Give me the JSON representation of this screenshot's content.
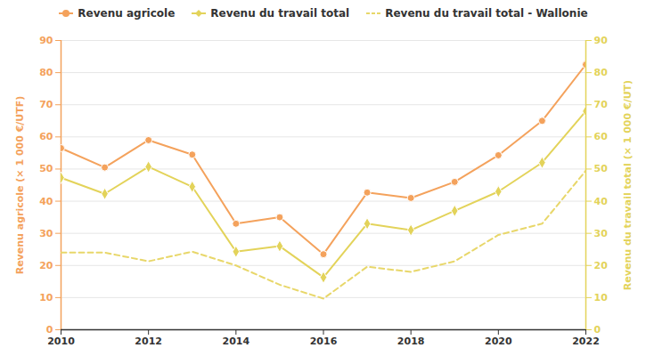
{
  "chart_data": {
    "type": "line",
    "xlabel": null,
    "ylabel": "Revenu agricole (× 1 000 €/UTF)",
    "y2label": "Revenu du travail total (× 1 000 €/UT)",
    "x": [
      2010,
      2011,
      2012,
      2013,
      2014,
      2015,
      2016,
      2017,
      2018,
      2019,
      2020,
      2021,
      2022
    ],
    "xlim": [
      2010,
      2022
    ],
    "xticks": [
      2010,
      2012,
      2014,
      2016,
      2018,
      2020,
      2022
    ],
    "ylim": [
      0,
      90
    ],
    "yticks": [
      0,
      10,
      20,
      30,
      40,
      50,
      60,
      70,
      80,
      90
    ],
    "y2lim": [
      0,
      90
    ],
    "y2ticks": [
      0,
      10,
      20,
      30,
      40,
      50,
      60,
      70,
      80,
      90
    ],
    "grid": true,
    "legend": "top",
    "series": [
      {
        "name": "Revenu agricole",
        "color": "#f4a25c",
        "marker": "circle",
        "line_style": "solid",
        "axis": "y",
        "values": [
          56.5,
          50.5,
          59,
          54.5,
          33,
          35,
          23.5,
          42.7,
          41,
          46,
          54.3,
          65,
          82.5
        ]
      },
      {
        "name": "Revenu du travail total",
        "color": "#e3d35a",
        "marker": "diamond",
        "line_style": "solid",
        "axis": "y2",
        "values": [
          47.3,
          42.3,
          50.7,
          44.5,
          24.3,
          26,
          16.3,
          33,
          31,
          37,
          43,
          52,
          68
        ]
      },
      {
        "name": "Revenu du travail total - Wallonie",
        "color": "#e8d76a",
        "marker": "none",
        "line_style": "dashed",
        "axis": "y2",
        "values": [
          24,
          24,
          21.3,
          24.3,
          20,
          14,
          9.7,
          19.6,
          18,
          21.3,
          29.5,
          33,
          49.5
        ]
      }
    ]
  }
}
